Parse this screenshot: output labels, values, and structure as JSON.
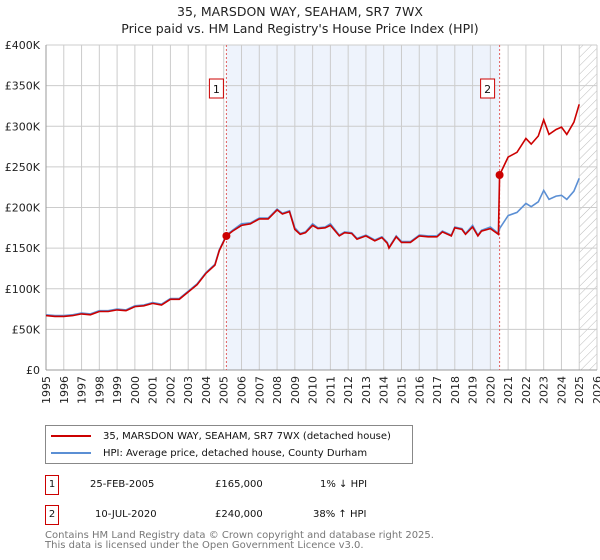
{
  "chart_data": {
    "type": "line",
    "title": "35, MARSDON WAY, SEAHAM, SR7 7WX",
    "subtitle": "Price paid vs. HM Land Registry's House Price Index (HPI)",
    "xlim": [
      1995,
      2026
    ],
    "ylim": [
      0,
      400000
    ],
    "x_ticks": [
      "1995",
      "1996",
      "1997",
      "1998",
      "1999",
      "2000",
      "2001",
      "2002",
      "2003",
      "2004",
      "2005",
      "2006",
      "2007",
      "2008",
      "2009",
      "2010",
      "2011",
      "2012",
      "2013",
      "2014",
      "2015",
      "2016",
      "2017",
      "2018",
      "2019",
      "2020",
      "2021",
      "2022",
      "2023",
      "2024",
      "2025",
      "2026"
    ],
    "y_ticks": [
      {
        "v": 0,
        "label": "£0"
      },
      {
        "v": 50000,
        "label": "£50K"
      },
      {
        "v": 100000,
        "label": "£100K"
      },
      {
        "v": 150000,
        "label": "£150K"
      },
      {
        "v": 200000,
        "label": "£200K"
      },
      {
        "v": 250000,
        "label": "£250K"
      },
      {
        "v": 300000,
        "label": "£300K"
      },
      {
        "v": 350000,
        "label": "£350K"
      },
      {
        "v": 400000,
        "label": "£400K"
      }
    ],
    "grid": true,
    "shaded_range": [
      2005.15,
      2020.52
    ],
    "forecast_hatch_from": 2025.0,
    "series": [
      {
        "name": "35, MARSDON WAY, SEAHAM, SR7 7WX (detached house)",
        "color": "#cc0000",
        "x": [
          1995,
          1995.5,
          1996,
          1996.5,
          1997,
          1997.5,
          1998,
          1998.5,
          1999,
          1999.5,
          2000,
          2000.5,
          2001,
          2001.5,
          2002,
          2002.5,
          2003,
          2003.5,
          2004,
          2004.5,
          2004.75,
          2005.15,
          2005.5,
          2006,
          2006.5,
          2007,
          2007.5,
          2008,
          2008.3,
          2008.7,
          2009,
          2009.3,
          2009.6,
          2010,
          2010.3,
          2010.7,
          2011,
          2011.5,
          2011.8,
          2012.2,
          2012.5,
          2013,
          2013.5,
          2013.9,
          2014.2,
          2014.3,
          2014.7,
          2015,
          2015.5,
          2016,
          2016.5,
          2017,
          2017.3,
          2017.8,
          2018,
          2018.4,
          2018.6,
          2019,
          2019.3,
          2019.5,
          2020,
          2020.45,
          2020.52,
          2021,
          2021.5,
          2022,
          2022.3,
          2022.7,
          2023,
          2023.3,
          2023.7,
          2024,
          2024.3,
          2024.7,
          2025
        ],
        "y": [
          67000,
          66000,
          66000,
          67000,
          69000,
          68000,
          72000,
          72000,
          74000,
          73000,
          78000,
          79000,
          82000,
          80000,
          87000,
          87000,
          96000,
          105000,
          119000,
          129000,
          147000,
          165000,
          171000,
          178000,
          180000,
          186000,
          186000,
          197000,
          192000,
          195000,
          173000,
          167000,
          169000,
          178000,
          174000,
          175000,
          178000,
          165000,
          169000,
          168000,
          161000,
          165000,
          159000,
          163000,
          156000,
          150000,
          164000,
          157000,
          157000,
          165000,
          164000,
          164000,
          170000,
          165000,
          175000,
          173000,
          167000,
          176000,
          165000,
          171000,
          174000,
          167000,
          240000,
          262000,
          268000,
          285000,
          278000,
          288000,
          308000,
          290000,
          296000,
          299000,
          290000,
          305000,
          327000
        ]
      },
      {
        "name": "HPI: Average price, detached house, County Durham",
        "color": "#5b8fd4",
        "x": [
          1995,
          1995.5,
          1996,
          1996.5,
          1997,
          1997.5,
          1998,
          1998.5,
          1999,
          1999.5,
          2000,
          2000.5,
          2001,
          2001.5,
          2002,
          2002.5,
          2003,
          2003.5,
          2004,
          2004.5,
          2004.75,
          2005.15,
          2005.5,
          2006,
          2006.5,
          2007,
          2007.5,
          2008,
          2008.3,
          2008.7,
          2009,
          2009.3,
          2009.6,
          2010,
          2010.3,
          2010.7,
          2011,
          2011.5,
          2011.8,
          2012.2,
          2012.5,
          2013,
          2013.5,
          2013.9,
          2014.2,
          2014.3,
          2014.7,
          2015,
          2015.5,
          2016,
          2016.5,
          2017,
          2017.3,
          2017.8,
          2018,
          2018.4,
          2018.6,
          2019,
          2019.3,
          2019.5,
          2020,
          2020.45,
          2020.52,
          2021,
          2021.5,
          2022,
          2022.3,
          2022.7,
          2023,
          2023.3,
          2023.7,
          2024,
          2024.3,
          2024.7,
          2025
        ],
        "y": [
          68000,
          67000,
          67000,
          68000,
          70000,
          69000,
          73000,
          73000,
          75000,
          74000,
          79000,
          80000,
          83000,
          81000,
          88000,
          88000,
          97000,
          106000,
          120000,
          130000,
          148000,
          166000,
          172000,
          180000,
          181000,
          187000,
          187000,
          198000,
          193000,
          196000,
          175000,
          168000,
          170000,
          180000,
          175000,
          176000,
          180000,
          166000,
          170000,
          169000,
          162000,
          166000,
          160000,
          164000,
          157000,
          151000,
          165000,
          158000,
          158000,
          166000,
          165000,
          165000,
          171000,
          166000,
          176000,
          174000,
          168000,
          178000,
          166000,
          172000,
          176000,
          168000,
          174000,
          190000,
          194000,
          205000,
          201000,
          207000,
          221000,
          210000,
          214000,
          215000,
          210000,
          220000,
          236000
        ]
      }
    ],
    "annotations": [
      {
        "id": "1",
        "x": 2005.15,
        "y": 165000,
        "date": "25-FEB-2005",
        "price": "£165,000",
        "hpi": "1% ↓ HPI"
      },
      {
        "id": "2",
        "x": 2020.52,
        "y": 240000,
        "date": "10-JUL-2020",
        "price": "£240,000",
        "hpi": "38% ↑ HPI"
      }
    ]
  },
  "footer": {
    "line1": "Contains HM Land Registry data © Crown copyright and database right 2025.",
    "line2": "This data is licensed under the Open Government Licence v3.0."
  }
}
